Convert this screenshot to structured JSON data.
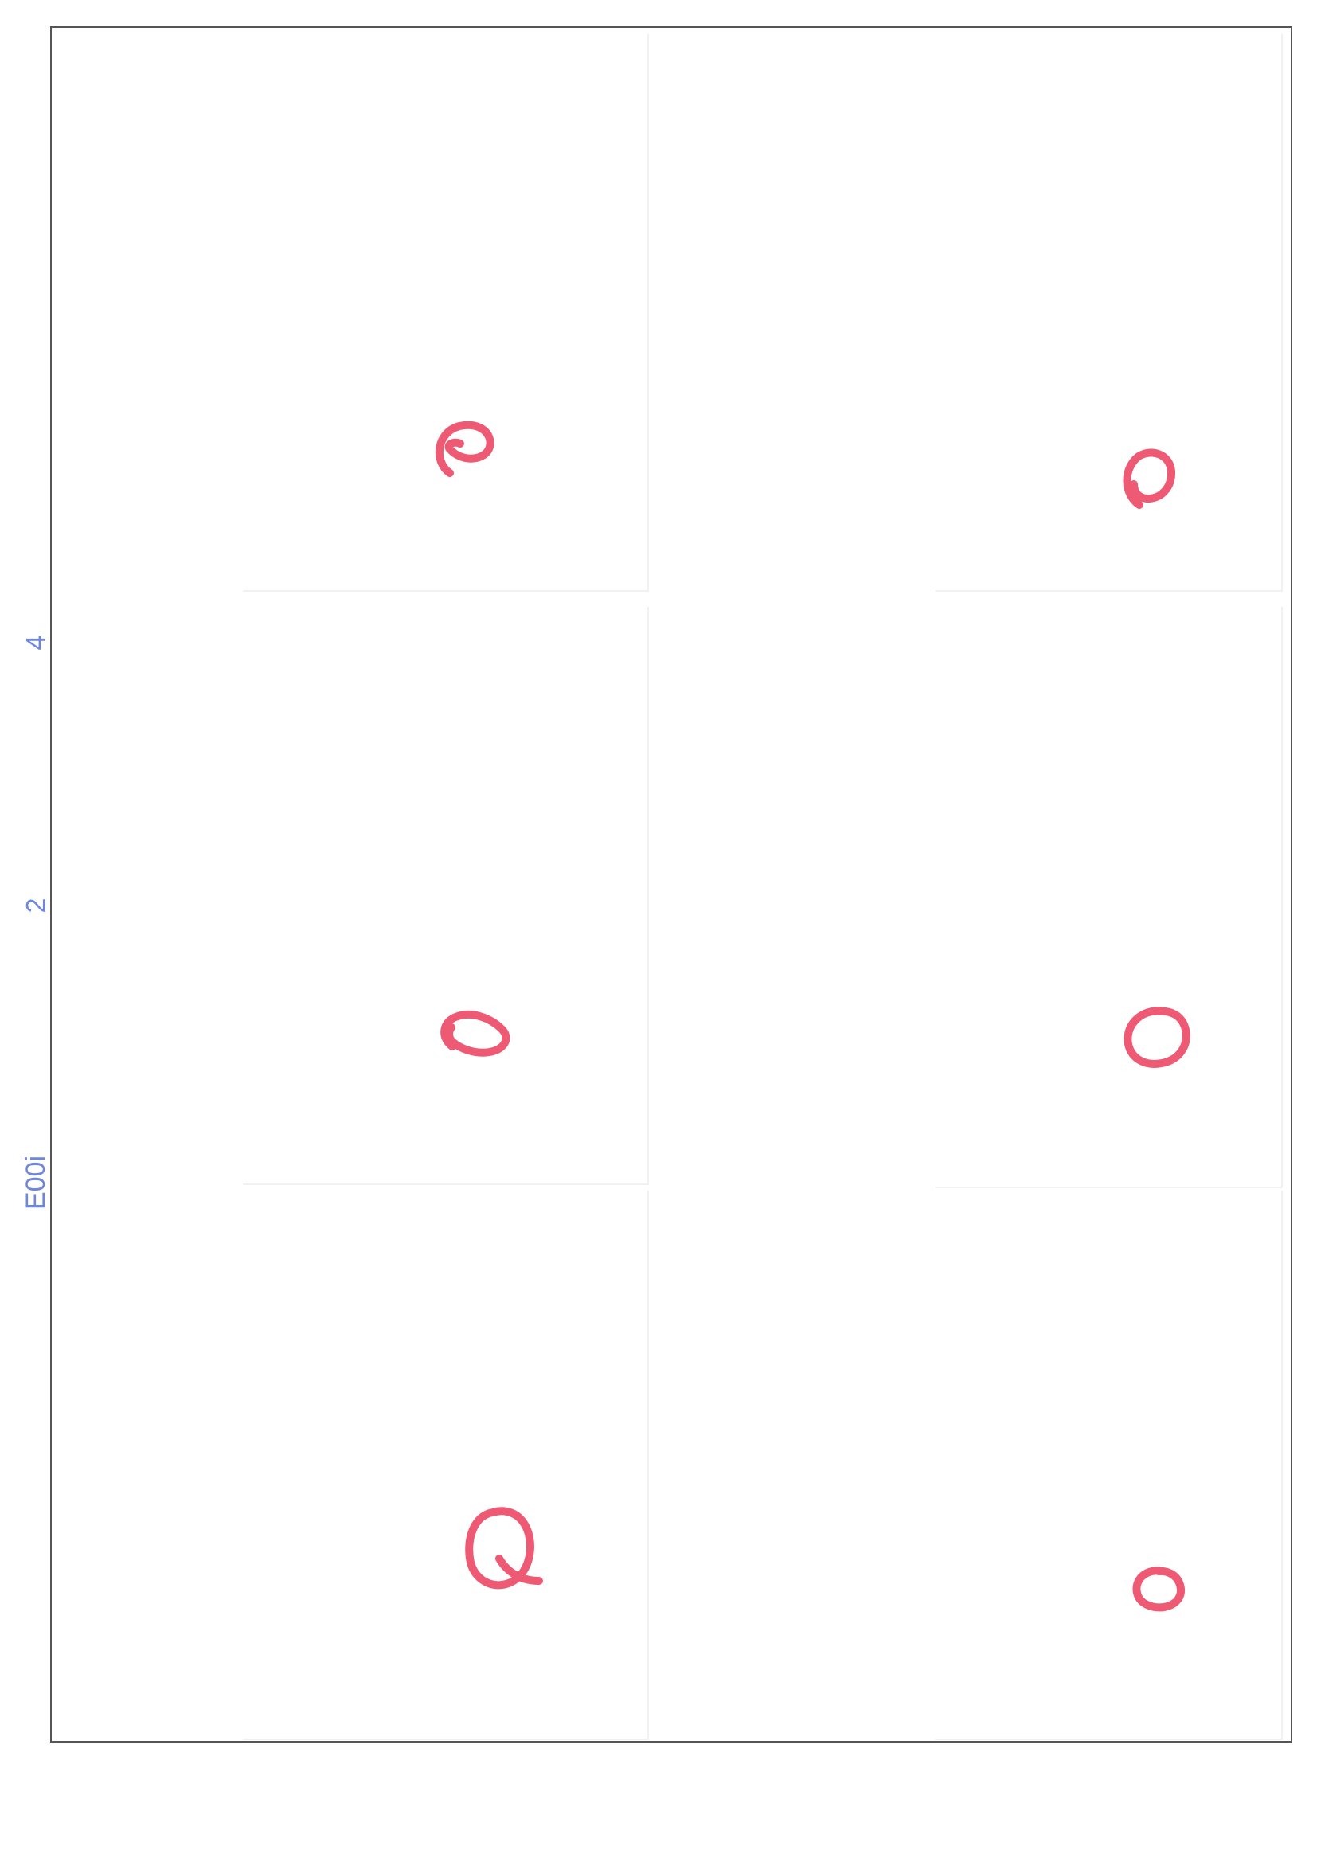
{
  "margin_notes": {
    "top": "4",
    "middle": "2",
    "bottom": "E00i"
  },
  "marks": {
    "color": "#ee5a74",
    "items": [
      {
        "id": "mark-1",
        "shape": "handwritten-circle-mark"
      },
      {
        "id": "mark-2",
        "shape": "handwritten-circle-mark"
      },
      {
        "id": "mark-3",
        "shape": "handwritten-circle-mark"
      },
      {
        "id": "mark-4",
        "shape": "handwritten-circle-mark"
      },
      {
        "id": "mark-5",
        "shape": "handwritten-circle-mark"
      },
      {
        "id": "mark-6",
        "shape": "handwritten-circle-mark"
      }
    ]
  }
}
